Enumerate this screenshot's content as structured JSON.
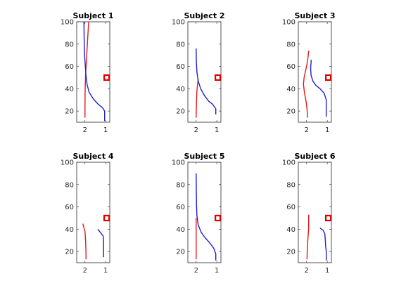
{
  "colors": {
    "red": "#e31a1c",
    "blue": "#1f1fd8",
    "marker": "#dd0000",
    "axes": "#262626"
  },
  "chart_data": [
    {
      "type": "line",
      "title": "Subject 1",
      "xlim": [
        2.4,
        0.8
      ],
      "ylim": [
        10,
        100
      ],
      "x_ticks": [
        2,
        1
      ],
      "y_ticks": [
        20,
        40,
        60,
        80,
        100
      ],
      "marker": {
        "x": 0.95,
        "y": 50
      },
      "series": [
        {
          "color": "red",
          "points": [
            [
              2.0,
              14
            ],
            [
              2.0,
              25
            ],
            [
              1.99,
              40
            ],
            [
              1.97,
              52
            ],
            [
              1.94,
              62
            ],
            [
              1.9,
              75
            ],
            [
              1.86,
              88
            ],
            [
              1.82,
              100
            ]
          ]
        },
        {
          "color": "blue",
          "points": [
            [
              2.05,
              100
            ],
            [
              2.04,
              85
            ],
            [
              2.02,
              70
            ],
            [
              1.98,
              60
            ],
            [
              1.95,
              52
            ],
            [
              1.9,
              44
            ],
            [
              1.8,
              37
            ],
            [
              1.6,
              31
            ],
            [
              1.35,
              26
            ],
            [
              1.15,
              23
            ],
            [
              1.05,
              20
            ],
            [
              1.05,
              11
            ]
          ]
        }
      ]
    },
    {
      "type": "line",
      "title": "Subject 2",
      "xlim": [
        2.4,
        0.8
      ],
      "ylim": [
        10,
        100
      ],
      "x_ticks": [
        2,
        1
      ],
      "y_ticks": [
        20,
        40,
        60,
        80,
        100
      ],
      "marker": {
        "x": 0.95,
        "y": 50
      },
      "series": [
        {
          "color": "red",
          "points": [
            [
              2.0,
              14
            ],
            [
              1.99,
              22
            ],
            [
              1.98,
              30
            ],
            [
              1.96,
              38
            ],
            [
              1.93,
              44
            ],
            [
              1.9,
              49
            ]
          ]
        },
        {
          "color": "blue",
          "points": [
            [
              2.0,
              76
            ],
            [
              1.99,
              65
            ],
            [
              1.96,
              55
            ],
            [
              1.9,
              47
            ],
            [
              1.78,
              40
            ],
            [
              1.6,
              34
            ],
            [
              1.4,
              29
            ],
            [
              1.2,
              26
            ],
            [
              1.05,
              22
            ],
            [
              1.05,
              17
            ]
          ]
        }
      ]
    },
    {
      "type": "line",
      "title": "Subject 3",
      "xlim": [
        2.4,
        0.8
      ],
      "ylim": [
        10,
        100
      ],
      "x_ticks": [
        2,
        1
      ],
      "y_ticks": [
        20,
        40,
        60,
        80,
        100
      ],
      "marker": {
        "x": 0.95,
        "y": 50
      },
      "series": [
        {
          "color": "red",
          "points": [
            [
              1.95,
              14
            ],
            [
              1.97,
              20
            ],
            [
              2.02,
              28
            ],
            [
              2.1,
              36
            ],
            [
              2.15,
              44
            ],
            [
              2.12,
              50
            ],
            [
              2.05,
              56
            ],
            [
              1.98,
              62
            ],
            [
              1.93,
              68
            ],
            [
              1.9,
              74
            ]
          ]
        },
        {
          "color": "blue",
          "points": [
            [
              1.05,
              15
            ],
            [
              1.05,
              30
            ],
            [
              1.15,
              36
            ],
            [
              1.35,
              40
            ],
            [
              1.55,
              43
            ],
            [
              1.7,
              47
            ],
            [
              1.78,
              52
            ],
            [
              1.8,
              57
            ],
            [
              1.8,
              60
            ],
            [
              1.78,
              64
            ],
            [
              1.78,
              66
            ]
          ]
        }
      ]
    },
    {
      "type": "line",
      "title": "Subject 4",
      "xlim": [
        2.4,
        0.8
      ],
      "ylim": [
        10,
        100
      ],
      "x_ticks": [
        2,
        1
      ],
      "y_ticks": [
        20,
        40,
        60,
        80,
        100
      ],
      "marker": {
        "x": 0.95,
        "y": 50
      },
      "series": [
        {
          "color": "red",
          "points": [
            [
              1.95,
              13
            ],
            [
              1.95,
              20
            ],
            [
              1.97,
              30
            ],
            [
              2.0,
              38
            ],
            [
              2.05,
              41
            ],
            [
              2.1,
              45
            ]
          ]
        },
        {
          "color": "blue",
          "points": [
            [
              1.1,
              15
            ],
            [
              1.1,
              24
            ],
            [
              1.1,
              30
            ],
            [
              1.12,
              34
            ],
            [
              1.25,
              37
            ],
            [
              1.38,
              40
            ]
          ]
        }
      ]
    },
    {
      "type": "line",
      "title": "Subject 5",
      "xlim": [
        2.4,
        0.8
      ],
      "ylim": [
        10,
        100
      ],
      "x_ticks": [
        2,
        1
      ],
      "y_ticks": [
        20,
        40,
        60,
        80,
        100
      ],
      "marker": {
        "x": 0.95,
        "y": 50
      },
      "series": [
        {
          "color": "red",
          "points": [
            [
              2.0,
              13
            ],
            [
              2.0,
              20
            ],
            [
              2.0,
              30
            ],
            [
              2.0,
              40
            ],
            [
              2.0,
              50
            ]
          ]
        },
        {
          "color": "blue",
          "points": [
            [
              2.0,
              90
            ],
            [
              1.99,
              75
            ],
            [
              1.98,
              62
            ],
            [
              1.96,
              52
            ],
            [
              1.9,
              44
            ],
            [
              1.75,
              37
            ],
            [
              1.55,
              32
            ],
            [
              1.35,
              28
            ],
            [
              1.15,
              23
            ],
            [
              1.05,
              18
            ],
            [
              1.05,
              12
            ]
          ]
        }
      ]
    },
    {
      "type": "line",
      "title": "Subject 6",
      "xlim": [
        2.4,
        0.8
      ],
      "ylim": [
        10,
        100
      ],
      "x_ticks": [
        2,
        1
      ],
      "y_ticks": [
        20,
        40,
        60,
        80,
        100
      ],
      "marker": {
        "x": 0.95,
        "y": 50
      },
      "series": [
        {
          "color": "red",
          "points": [
            [
              1.98,
              13
            ],
            [
              1.96,
              22
            ],
            [
              1.94,
              30
            ],
            [
              1.92,
              36
            ],
            [
              1.9,
              40
            ],
            [
              1.9,
              46
            ],
            [
              1.9,
              53
            ]
          ]
        },
        {
          "color": "blue",
          "points": [
            [
              1.05,
              12
            ],
            [
              1.05,
              20
            ],
            [
              1.08,
              25
            ],
            [
              1.1,
              32
            ],
            [
              1.12,
              36
            ],
            [
              1.2,
              39
            ],
            [
              1.35,
              41
            ]
          ]
        }
      ]
    }
  ]
}
